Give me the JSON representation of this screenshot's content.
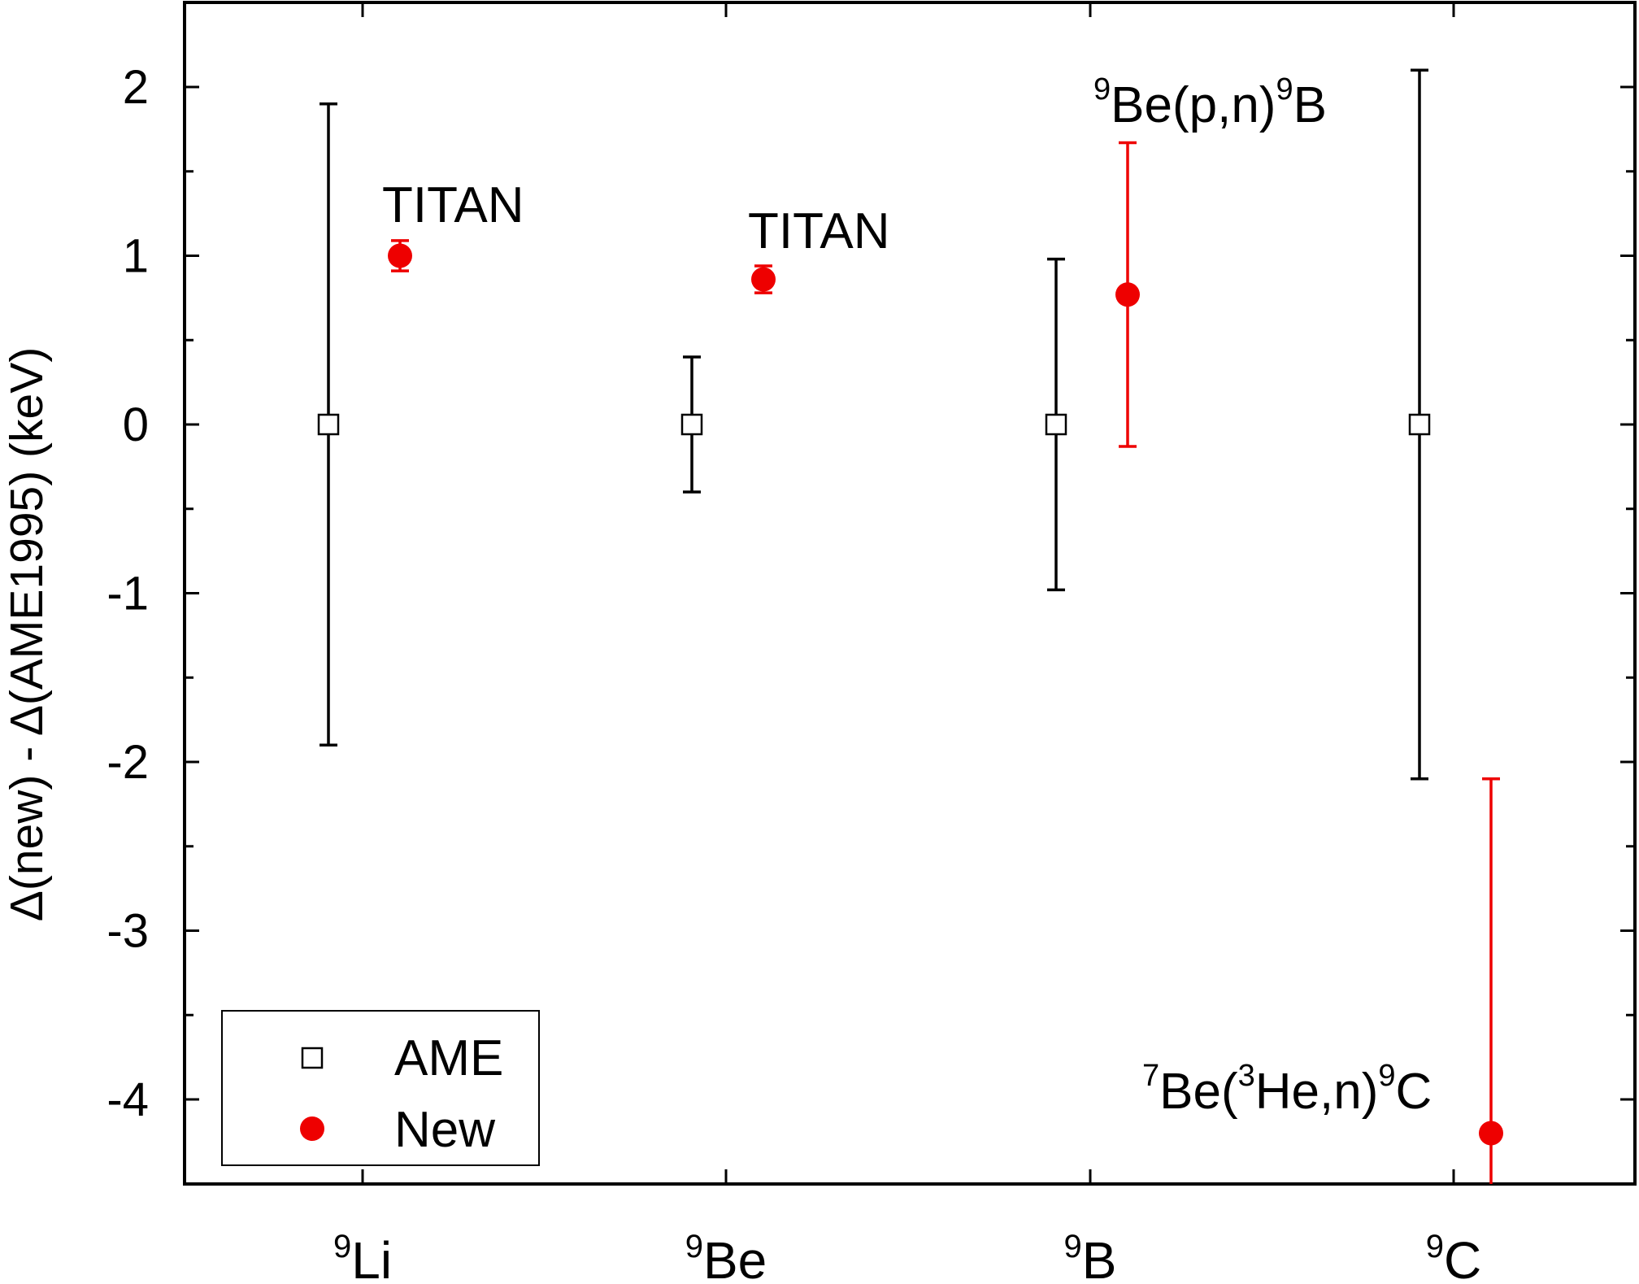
{
  "chart_data": {
    "type": "scatter",
    "ylabel": "Δ(new) - Δ(AME1995) (keV)",
    "ylim": [
      -4.5,
      2.5
    ],
    "yticks": [
      "2",
      "1",
      "0",
      "-1",
      "-2",
      "-3",
      "-4"
    ],
    "categories": [
      {
        "mass": "9",
        "symbol": "Li"
      },
      {
        "mass": "9",
        "symbol": "Be"
      },
      {
        "mass": "9",
        "symbol": "B"
      },
      {
        "mass": "9",
        "symbol": "C"
      }
    ],
    "series": [
      {
        "name": "AME",
        "color": "#000000",
        "marker": "open-square",
        "points": [
          {
            "category": 0,
            "y": 0,
            "err": 1.9
          },
          {
            "category": 1,
            "y": 0,
            "err": 0.4
          },
          {
            "category": 2,
            "y": 0,
            "err": 0.98
          },
          {
            "category": 3,
            "y": 0,
            "err": 2.1
          }
        ]
      },
      {
        "name": "New",
        "color": "#ee0000",
        "marker": "filled-circle",
        "points": [
          {
            "category": 0,
            "y": 1.0,
            "err": 0.09
          },
          {
            "category": 1,
            "y": 0.86,
            "err": 0.08
          },
          {
            "category": 2,
            "y": 0.77,
            "err": 0.9
          },
          {
            "category": 3,
            "y": -4.2,
            "err": 2.1
          }
        ]
      }
    ],
    "annotations": [
      {
        "id": "li",
        "parts": [
          {
            "t": "TITAN"
          }
        ]
      },
      {
        "id": "be",
        "parts": [
          {
            "t": "TITAN"
          }
        ]
      },
      {
        "id": "b",
        "parts": [
          {
            "t": "9",
            "sup": true
          },
          {
            "t": "Be(p,n)"
          },
          {
            "t": "9",
            "sup": true
          },
          {
            "t": "B"
          }
        ]
      },
      {
        "id": "c",
        "parts": [
          {
            "t": "7",
            "sup": true
          },
          {
            "t": "Be("
          },
          {
            "t": "3",
            "sup": true
          },
          {
            "t": "He,n)"
          },
          {
            "t": "9",
            "sup": true
          },
          {
            "t": "C"
          }
        ]
      }
    ],
    "legend": {
      "position": "bottom-left",
      "entries": [
        "AME",
        "New"
      ]
    }
  }
}
